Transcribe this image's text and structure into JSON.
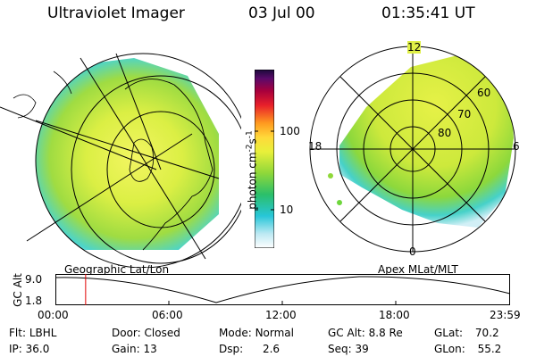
{
  "header": {
    "title": "Ultraviolet Imager",
    "date": "03 Jul 00",
    "time": "01:35:41 UT"
  },
  "colorbar": {
    "label": "photon cm",
    "label_sup1": "-2",
    "label_mid": "s",
    "label_sup2": "-1",
    "ticks": [
      "100",
      "10"
    ],
    "scale": "log"
  },
  "left_panel": {
    "caption": "Geographic Lat/Lon"
  },
  "right_panel": {
    "caption": "Apex MLat/MLT",
    "mlt_labels": {
      "top": "12",
      "left": "18",
      "right": "6",
      "bottom": "0"
    },
    "lat_labels": [
      "60",
      "70",
      "80"
    ]
  },
  "altitude_plot": {
    "ylabel": "GC Alt",
    "ymax": "9.0",
    "ymin": "1.8",
    "x_ticks": [
      "00:00",
      "06:00",
      "12:00",
      "18:00",
      "23:59"
    ],
    "marker_time_hours": 1.595
  },
  "status": {
    "flt_label": "Flt:",
    "flt_value": "LBHL",
    "ip_label": "IP:",
    "ip_value": "36.0",
    "door_label": "Door:",
    "door_value": "Closed",
    "gain_label": "Gain:",
    "gain_value": "13",
    "mode_label": "Mode:",
    "mode_value": "Normal",
    "dsp_label": "Dsp:",
    "dsp_value": "2.6",
    "gcalt_label": "GC Alt:",
    "gcalt_value": "8.8 Re",
    "seq_label": "Seq:",
    "seq_value": "39",
    "glat_label": "GLat:",
    "glat_value": "70.2",
    "glon_label": "GLon:",
    "glon_value": "55.2"
  },
  "colors": {
    "aurora_yellow": "#dcef3c",
    "aurora_green": "#7fd43a",
    "aurora_cyan": "#3fd6e0",
    "background": "#ffffff"
  }
}
